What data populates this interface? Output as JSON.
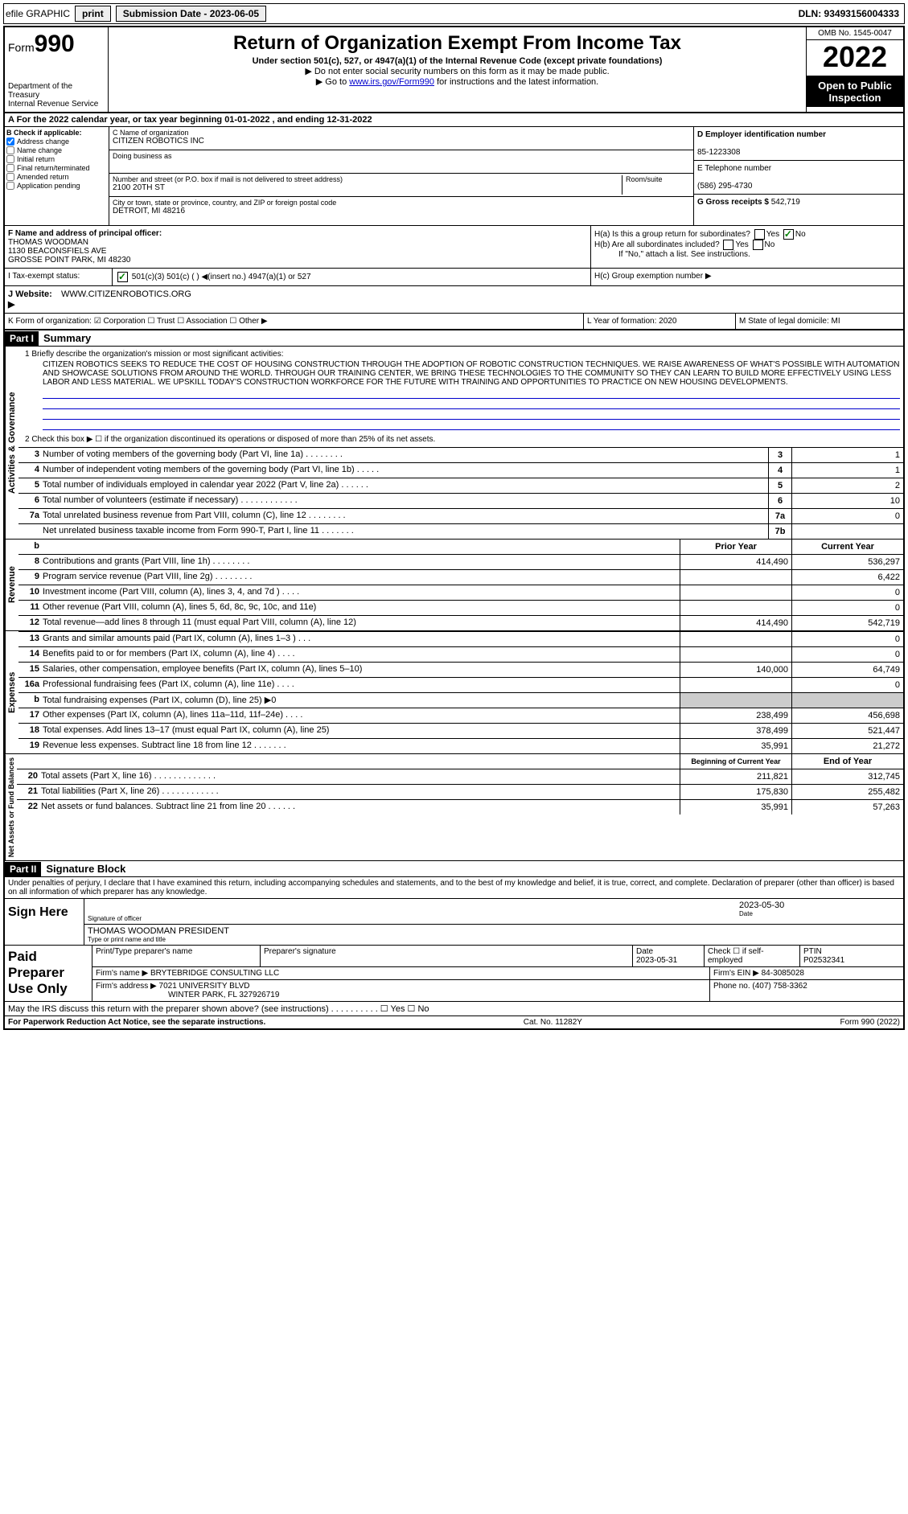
{
  "top": {
    "efile": "efile GRAPHIC",
    "print": "print",
    "subdate_label": "Submission Date - 2023-06-05",
    "dln": "DLN: 93493156004333"
  },
  "header": {
    "form_prefix": "Form",
    "form_num": "990",
    "dept": "Department of the Treasury",
    "irs": "Internal Revenue Service",
    "title": "Return of Organization Exempt From Income Tax",
    "sub": "Under section 501(c), 527, or 4947(a)(1) of the Internal Revenue Code (except private foundations)",
    "note1": "▶ Do not enter social security numbers on this form as it may be made public.",
    "note2_pre": "▶ Go to ",
    "note2_link": "www.irs.gov/Form990",
    "note2_post": " for instructions and the latest information.",
    "omb": "OMB No. 1545-0047",
    "year": "2022",
    "open": "Open to Public Inspection"
  },
  "rowA": "A For the 2022 calendar year, or tax year beginning 01-01-2022  , and ending 12-31-2022",
  "B": {
    "label": "B Check if applicable:",
    "items": [
      "Address change",
      "Name change",
      "Initial return",
      "Final return/terminated",
      "Amended return",
      "Application pending"
    ],
    "checked_idx": 0
  },
  "C": {
    "name_label": "C Name of organization",
    "name": "CITIZEN ROBOTICS INC",
    "dba_label": "Doing business as",
    "dba": "",
    "addr_label": "Number and street (or P.O. box if mail is not delivered to street address)",
    "room_label": "Room/suite",
    "addr": "2100 20TH ST",
    "city_label": "City or town, state or province, country, and ZIP or foreign postal code",
    "city": "DETROIT, MI  48216"
  },
  "D": {
    "label": "D Employer identification number",
    "val": "85-1223308"
  },
  "E": {
    "label": "E Telephone number",
    "val": "(586) 295-4730"
  },
  "G": {
    "label": "G Gross receipts $",
    "val": "542,719"
  },
  "F": {
    "label": "F Name and address of principal officer:",
    "name": "THOMAS WOODMAN",
    "addr1": "1130 BEACONSFIELS AVE",
    "addr2": "GROSSE POINT PARK, MI  48230"
  },
  "H": {
    "a": "H(a)  Is this a group return for subordinates?",
    "a_no": true,
    "b": "H(b)  Are all subordinates included?",
    "b_note": "If \"No,\" attach a list. See instructions.",
    "c": "H(c)  Group exemption number ▶"
  },
  "I": {
    "label": "I  Tax-exempt status:",
    "opts": "501(c)(3)     501(c) (  ) ◀(insert no.)     4947(a)(1) or     527"
  },
  "J": {
    "label": "J  Website: ▶",
    "val": "WWW.CITIZENROBOTICS.ORG"
  },
  "K": {
    "text": "K Form of organization:  ☑ Corporation  ☐ Trust  ☐ Association  ☐ Other ▶"
  },
  "L": {
    "text": "L Year of formation: 2020"
  },
  "M": {
    "text": "M State of legal domicile: MI"
  },
  "partI": {
    "label": "Part I",
    "title": "Summary"
  },
  "mission": {
    "q1": "1  Briefly describe the organization's mission or most significant activities:",
    "text": "CITIZEN ROBOTICS SEEKS TO REDUCE THE COST OF HOUSING CONSTRUCTION THROUGH THE ADOPTION OF ROBOTIC CONSTRUCTION TECHNIQUES. WE RAISE AWARENESS OF WHAT'S POSSIBLE WITH AUTOMATION AND SHOWCASE SOLUTIONS FROM AROUND THE WORLD. THROUGH OUR TRAINING CENTER, WE BRING THESE TECHNOLOGIES TO THE COMMUNITY SO THEY CAN LEARN TO BUILD MORE EFFECTIVELY USING LESS LABOR AND LESS MATERIAL. WE UPSKILL TODAY'S CONSTRUCTION WORKFORCE FOR THE FUTURE WITH TRAINING AND OPPORTUNITIES TO PRACTICE ON NEW HOUSING DEVELOPMENTS.",
    "q2": "2  Check this box ▶ ☐  if the organization discontinued its operations or disposed of more than 25% of its net assets."
  },
  "gov_rows": [
    {
      "n": "3",
      "d": "Number of voting members of the governing body (Part VI, line 1a)   .   .   .   .   .   .   .   .",
      "box": "3",
      "v": "1"
    },
    {
      "n": "4",
      "d": "Number of independent voting members of the governing body (Part VI, line 1b)   .   .   .   .   .",
      "box": "4",
      "v": "1"
    },
    {
      "n": "5",
      "d": "Total number of individuals employed in calendar year 2022 (Part V, line 2a)   .   .   .   .   .   .",
      "box": "5",
      "v": "2"
    },
    {
      "n": "6",
      "d": "Total number of volunteers (estimate if necessary)   .   .   .   .   .   .   .   .   .   .   .   .",
      "box": "6",
      "v": "10"
    },
    {
      "n": "7a",
      "d": "Total unrelated business revenue from Part VIII, column (C), line 12   .   .   .   .   .   .   .   .",
      "box": "7a",
      "v": "0"
    },
    {
      "n": "",
      "d": "Net unrelated business taxable income from Form 990-T, Part I, line 11   .   .   .   .   .   .   .",
      "box": "7b",
      "v": ""
    }
  ],
  "col_headers": {
    "b": "b",
    "prior": "Prior Year",
    "curr": "Current Year"
  },
  "rev_rows": [
    {
      "n": "8",
      "d": "Contributions and grants (Part VIII, line 1h)   .   .   .   .   .   .   .   .",
      "p": "414,490",
      "c": "536,297"
    },
    {
      "n": "9",
      "d": "Program service revenue (Part VIII, line 2g)   .   .   .   .   .   .   .   .",
      "p": "",
      "c": "6,422"
    },
    {
      "n": "10",
      "d": "Investment income (Part VIII, column (A), lines 3, 4, and 7d )   .   .   .   .",
      "p": "",
      "c": "0"
    },
    {
      "n": "11",
      "d": "Other revenue (Part VIII, column (A), lines 5, 6d, 8c, 9c, 10c, and 11e)",
      "p": "",
      "c": "0"
    },
    {
      "n": "12",
      "d": "Total revenue—add lines 8 through 11 (must equal Part VIII, column (A), line 12)",
      "p": "414,490",
      "c": "542,719"
    }
  ],
  "exp_rows": [
    {
      "n": "13",
      "d": "Grants and similar amounts paid (Part IX, column (A), lines 1–3 )   .   .   .",
      "p": "",
      "c": "0"
    },
    {
      "n": "14",
      "d": "Benefits paid to or for members (Part IX, column (A), line 4)   .   .   .   .",
      "p": "",
      "c": "0"
    },
    {
      "n": "15",
      "d": "Salaries, other compensation, employee benefits (Part IX, column (A), lines 5–10)",
      "p": "140,000",
      "c": "64,749"
    },
    {
      "n": "16a",
      "d": "Professional fundraising fees (Part IX, column (A), line 11e)   .   .   .   .",
      "p": "",
      "c": "0"
    },
    {
      "n": "b",
      "d": "Total fundraising expenses (Part IX, column (D), line 25) ▶0",
      "p": "shaded",
      "c": "shaded"
    },
    {
      "n": "17",
      "d": "Other expenses (Part IX, column (A), lines 11a–11d, 11f–24e)   .   .   .   .",
      "p": "238,499",
      "c": "456,698"
    },
    {
      "n": "18",
      "d": "Total expenses. Add lines 13–17 (must equal Part IX, column (A), line 25)",
      "p": "378,499",
      "c": "521,447"
    },
    {
      "n": "19",
      "d": "Revenue less expenses. Subtract line 18 from line 12   .   .   .   .   .   .   .",
      "p": "35,991",
      "c": "21,272"
    }
  ],
  "na_headers": {
    "p": "Beginning of Current Year",
    "c": "End of Year"
  },
  "na_rows": [
    {
      "n": "20",
      "d": "Total assets (Part X, line 16)   .   .   .   .   .   .   .   .   .   .   .   .   .",
      "p": "211,821",
      "c": "312,745"
    },
    {
      "n": "21",
      "d": "Total liabilities (Part X, line 26)   .   .   .   .   .   .   .   .   .   .   .   .",
      "p": "175,830",
      "c": "255,482"
    },
    {
      "n": "22",
      "d": "Net assets or fund balances. Subtract line 21 from line 20   .   .   .   .   .   .",
      "p": "35,991",
      "c": "57,263"
    }
  ],
  "partII": {
    "label": "Part II",
    "title": "Signature Block"
  },
  "perjury": "Under penalties of perjury, I declare that I have examined this return, including accompanying schedules and statements, and to the best of my knowledge and belief, it is true, correct, and complete. Declaration of preparer (other than officer) is based on all information of which preparer has any knowledge.",
  "sign": {
    "label": "Sign Here",
    "sig_label": "Signature of officer",
    "date": "2023-05-30",
    "date_label": "Date",
    "name": "THOMAS WOODMAN PRESIDENT",
    "name_label": "Type or print name and title"
  },
  "paid": {
    "label": "Paid Preparer Use Only",
    "h_name": "Print/Type preparer's name",
    "h_sig": "Preparer's signature",
    "h_date": "Date",
    "date": "2023-05-31",
    "h_check": "Check ☐ if self-employed",
    "h_ptin": "PTIN",
    "ptin": "P02532341",
    "firm_label": "Firm's name    ▶",
    "firm": "BRYTEBRIDGE CONSULTING LLC",
    "ein_label": "Firm's EIN ▶",
    "ein": "84-3085028",
    "addr_label": "Firm's address ▶",
    "addr1": "7021 UNIVERSITY BLVD",
    "addr2": "WINTER PARK, FL  327926719",
    "phone_label": "Phone no.",
    "phone": "(407) 758-3362"
  },
  "discuss": "May the IRS discuss this return with the preparer shown above? (see instructions)   .   .   .   .   .   .   .   .   .   .    ☐ Yes  ☐ No",
  "footer": {
    "l": "For Paperwork Reduction Act Notice, see the separate instructions.",
    "m": "Cat. No. 11282Y",
    "r": "Form 990 (2022)"
  },
  "vert": {
    "gov": "Activities & Governance",
    "rev": "Revenue",
    "exp": "Expenses",
    "na": "Net Assets or Fund Balances"
  }
}
